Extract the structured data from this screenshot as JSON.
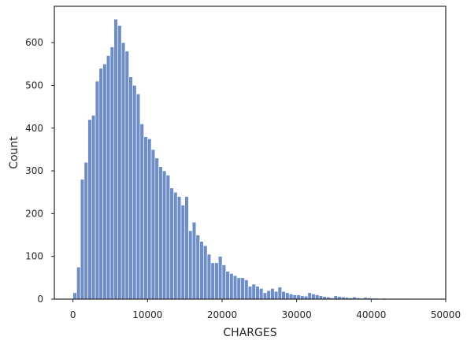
{
  "chart_data": {
    "type": "histogram",
    "xlabel": "CHARGES",
    "ylabel": "Count",
    "xlim": [
      -2500,
      50000
    ],
    "ylim": [
      0,
      685
    ],
    "xticks": [
      0,
      10000,
      20000,
      30000,
      40000,
      50000
    ],
    "xtick_labels": [
      "0",
      "10000",
      "20000",
      "30000",
      "40000",
      "50000"
    ],
    "yticks": [
      0,
      100,
      200,
      300,
      400,
      500,
      600
    ],
    "ytick_labels": [
      "0",
      "100",
      "200",
      "300",
      "400",
      "500",
      "600"
    ],
    "bin_start": 0,
    "bin_width": 500,
    "values": [
      15,
      75,
      280,
      320,
      420,
      430,
      510,
      540,
      550,
      570,
      590,
      655,
      640,
      600,
      580,
      520,
      500,
      480,
      410,
      380,
      375,
      350,
      330,
      310,
      300,
      290,
      260,
      250,
      240,
      220,
      240,
      160,
      180,
      150,
      135,
      125,
      105,
      85,
      85,
      100,
      80,
      65,
      60,
      55,
      50,
      50,
      45,
      30,
      35,
      30,
      25,
      15,
      20,
      25,
      18,
      28,
      18,
      15,
      12,
      10,
      10,
      8,
      7,
      15,
      12,
      10,
      8,
      6,
      5,
      3,
      8,
      6,
      5,
      4,
      3,
      5,
      3,
      2,
      4,
      3,
      2,
      2,
      1,
      2,
      1,
      1,
      1,
      1,
      1,
      0,
      0,
      0,
      0,
      0,
      0
    ],
    "color": "#6f8ec6",
    "grid": false,
    "legend": "none"
  }
}
